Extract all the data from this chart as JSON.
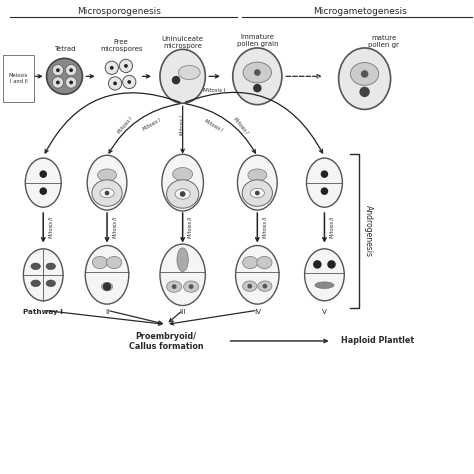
{
  "title_left": "Microsporogenesis",
  "title_right": "Microgametogenesis",
  "meiosis_label": "Meiosis\nI and II",
  "top_cell_labels": [
    "Tetrad",
    "Free\nmicrospores",
    "Uninulceate\nmicrospore",
    "Immature\npollen grain",
    "mature\npollen gr"
  ],
  "pathway_labels": [
    "Pathway I",
    "II",
    "III",
    "IV",
    "V"
  ],
  "bottom_labels": [
    "Proembryoid/\nCallus formation",
    "Haploid Plantlet"
  ],
  "androgenesis_label": "Androgenesis",
  "bg_color": "#ffffff",
  "line_color": "#2a2a2a",
  "cell_light": "#f5f5f5",
  "cell_mid": "#cccccc",
  "cell_dark": "#888888",
  "tetrad_fill": "#888888"
}
